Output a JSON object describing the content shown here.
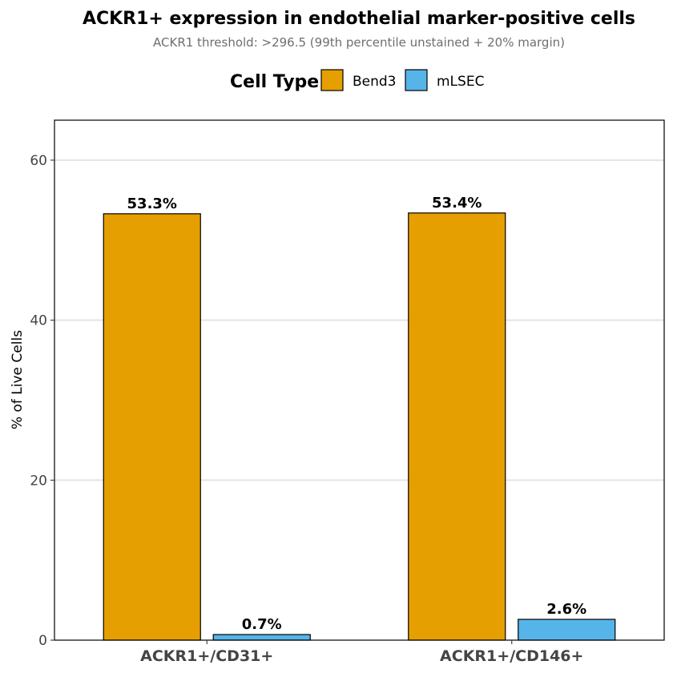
{
  "chart_data": {
    "type": "bar",
    "title": "ACKR1+ expression in endothelial marker-positive cells",
    "subtitle": "ACKR1 threshold: >296.5 (99th percentile unstained + 20% margin)",
    "xlabel": "",
    "ylabel": "% of Live Cells",
    "ylim": [
      0,
      65
    ],
    "yticks": [
      0,
      20,
      40,
      60
    ],
    "ytick_labels": [
      "0",
      "20",
      "40",
      "60"
    ],
    "grid": true,
    "legend_title": "Cell Type",
    "legend_position": "top",
    "categories": [
      "ACKR1+/CD31+",
      "ACKR1+/CD146+"
    ],
    "series": [
      {
        "name": "Bend3",
        "color": "#E69F00",
        "values": [
          53.3,
          53.4
        ],
        "labels": [
          "53.3%",
          "53.4%"
        ]
      },
      {
        "name": "mLSEC",
        "color": "#56B4E9",
        "values": [
          0.7,
          2.6
        ],
        "labels": [
          "0.7%",
          "2.6%"
        ]
      }
    ]
  }
}
